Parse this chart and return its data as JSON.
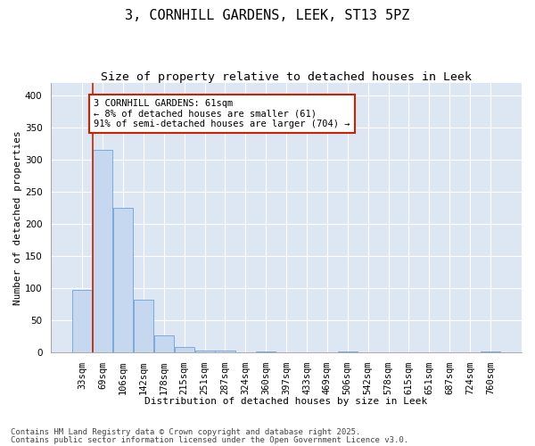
{
  "title_line1": "3, CORNHILL GARDENS, LEEK, ST13 5PZ",
  "title_line2": "Size of property relative to detached houses in Leek",
  "xlabel": "Distribution of detached houses by size in Leek",
  "ylabel": "Number of detached properties",
  "categories": [
    "33sqm",
    "69sqm",
    "106sqm",
    "142sqm",
    "178sqm",
    "215sqm",
    "251sqm",
    "287sqm",
    "324sqm",
    "360sqm",
    "397sqm",
    "433sqm",
    "469sqm",
    "506sqm",
    "542sqm",
    "578sqm",
    "615sqm",
    "651sqm",
    "687sqm",
    "724sqm",
    "760sqm"
  ],
  "values": [
    97,
    315,
    225,
    82,
    26,
    9,
    3,
    3,
    0,
    2,
    0,
    0,
    0,
    1,
    0,
    0,
    0,
    0,
    0,
    0,
    1
  ],
  "bar_color": "#c5d8ef",
  "bar_edge_color": "#7aaadb",
  "vline_x": 0.5,
  "vline_color": "#cc2200",
  "annotation_text": "3 CORNHILL GARDENS: 61sqm\n← 8% of detached houses are smaller (61)\n91% of semi-detached houses are larger (704) →",
  "annotation_box_color": "#ffffff",
  "annotation_box_edge": "#cc2200",
  "ylim": [
    0,
    420
  ],
  "yticks": [
    0,
    50,
    100,
    150,
    200,
    250,
    300,
    350,
    400
  ],
  "plot_bg": "#dde6f3",
  "fig_bg": "#ffffff",
  "grid_color": "#ffffff",
  "footer_line1": "Contains HM Land Registry data © Crown copyright and database right 2025.",
  "footer_line2": "Contains public sector information licensed under the Open Government Licence v3.0.",
  "title_fontsize": 11,
  "subtitle_fontsize": 9.5,
  "axis_label_fontsize": 8,
  "tick_fontsize": 7.5,
  "annotation_fontsize": 7.5,
  "footer_fontsize": 6.5
}
